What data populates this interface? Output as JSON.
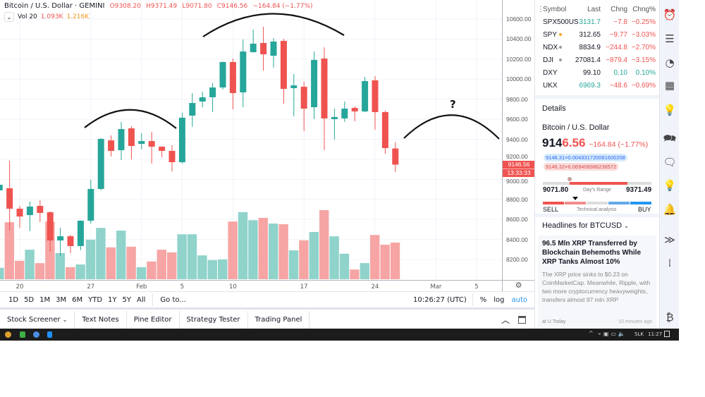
{
  "legend": {
    "title": "Bitcoin / U.S. Dollar · GEMINI",
    "open": "O9308.20",
    "high": "H9371.49",
    "low": "L9071.80",
    "close": "C9146.56",
    "change": "−164.84 (−1.77%)",
    "vol_label": "Vol 20",
    "vol_value": "1.093K",
    "vol_ma": "1.216K"
  },
  "colors": {
    "up": "#26a69a",
    "down": "#ef5350",
    "up_vol": "#8fd3cb",
    "down_vol": "#f6a5a4"
  },
  "chart_data": {
    "type": "candlestick",
    "dates": [
      "2020-01-18",
      "2020-01-19",
      "2020-01-20",
      "2020-01-21",
      "2020-01-22",
      "2020-01-23",
      "2020-01-24",
      "2020-01-25",
      "2020-01-26",
      "2020-01-27",
      "2020-01-28",
      "2020-01-29",
      "2020-01-30",
      "2020-01-31",
      "2020-02-01",
      "2020-02-02",
      "2020-02-03",
      "2020-02-04",
      "2020-02-05",
      "2020-02-06",
      "2020-02-07",
      "2020-02-08",
      "2020-02-09",
      "2020-02-10",
      "2020-02-11",
      "2020-02-12",
      "2020-02-13",
      "2020-02-14",
      "2020-02-15",
      "2020-02-16",
      "2020-02-17",
      "2020-02-18",
      "2020-02-19",
      "2020-02-20",
      "2020-02-21",
      "2020-02-22",
      "2020-02-23",
      "2020-02-24",
      "2020-02-25",
      "2020-02-26"
    ],
    "open": [
      8890,
      8911,
      8707,
      8643,
      8735,
      8672,
      8390,
      8432,
      8334,
      8587,
      8904,
      9389,
      9291,
      9509,
      9354,
      9382,
      9326,
      9284,
      9171,
      9636,
      9777,
      9819,
      9917,
      10171,
      9868,
      10269,
      10361,
      10234,
      10382,
      9910,
      9924,
      9720,
      10206,
      9601,
      9608,
      9713,
      9678,
      9988,
      9671,
      9308.2
    ],
    "high": [
      8995,
      9185,
      8735,
      8777,
      8791,
      8680,
      8517,
      8446,
      8590,
      8995,
      9410,
      9439,
      9572,
      9530,
      9460,
      9474,
      9330,
      9340,
      9664,
      9861,
      9875,
      9960,
      10175,
      10206,
      10396,
      10494,
      10523,
      10410,
      10403,
      10051,
      9974,
      10276,
      10318,
      9706,
      9777,
      9727,
      10023,
      10030,
      9685,
      9371.49
    ],
    "low": [
      8855,
      8489,
      8517,
      8482,
      8573,
      8277,
      8235,
      8263,
      8292,
      8559,
      8890,
      9228,
      9192,
      9199,
      9298,
      9157,
      9221,
      9080,
      9157,
      9523,
      9720,
      9671,
      9896,
      9699,
      9720,
      10265,
      10086,
      10114,
      9755,
      9629,
      9481,
      9601,
      9291,
      9397,
      9572,
      9579,
      9670,
      9495,
      9256,
      9071.8
    ],
    "close": [
      8946,
      8707,
      8629,
      8728,
      8665,
      8390,
      8432,
      8334,
      8587,
      8904,
      9404,
      9284,
      9502,
      9333,
      9382,
      9326,
      9284,
      9171,
      9615,
      9762,
      9819,
      9917,
      10171,
      9861,
      10276,
      10354,
      10248,
      10375,
      9903,
      9938,
      9706,
      10192,
      9608,
      9622,
      9706,
      9678,
      9981,
      9671,
      9312,
      9146.56
    ],
    "volume_k": [
      0.34,
      1.7,
      0.55,
      0.88,
      0.48,
      1.72,
      0.78,
      0.36,
      0.44,
      1.18,
      1.53,
      0.95,
      1.45,
      0.97,
      0.36,
      0.53,
      0.88,
      0.8,
      1.34,
      1.34,
      0.71,
      0.57,
      0.59,
      1.72,
      2.0,
      1.76,
      1.83,
      1.66,
      1.64,
      0.86,
      1.16,
      1.41,
      2.06,
      1.28,
      0.76,
      0.29,
      0.48,
      1.32,
      1.03,
      1.093
    ],
    "ylim": [
      8050,
      10790
    ],
    "y_ticks": [
      "10600.00",
      "10400.00",
      "10200.00",
      "10000.00",
      "9800.00",
      "9600.00",
      "9400.00",
      "9200.00",
      "9000.00",
      "8800.00",
      "8600.00",
      "8400.00",
      "8200.00"
    ],
    "x_ticks": [
      {
        "label": "20",
        "date": "2020-01-20"
      },
      {
        "label": "27",
        "date": "2020-01-27"
      },
      {
        "label": "Feb",
        "date": "2020-02-01"
      },
      {
        "label": "5",
        "date": "2020-02-05"
      },
      {
        "label": "10",
        "date": "2020-02-10"
      },
      {
        "label": "17",
        "date": "2020-02-17"
      },
      {
        "label": "24",
        "date": "2020-02-24"
      },
      {
        "label": "Mar",
        "date": "2020-03-01"
      },
      {
        "label": "5",
        "date": "2020-03-05"
      }
    ],
    "last_price_label": "9146.56",
    "countdown": "13:33:33",
    "annotation": "?",
    "grid": true
  },
  "range_bar": {
    "ranges": [
      "1D",
      "5D",
      "1M",
      "3M",
      "6M",
      "YTD",
      "1Y",
      "5Y",
      "All"
    ],
    "goto": "Go to...",
    "time": "10:26:27 (UTC)",
    "percent": "%",
    "log": "log",
    "auto": "auto"
  },
  "bottom_tabs": [
    "Stock Screener",
    "Text Notes",
    "Pine Editor",
    "Strategy Tester",
    "Trading Panel"
  ],
  "watchlist": {
    "headers": [
      "Symbol",
      "Last",
      "Chng",
      "Chng%"
    ],
    "rows": [
      {
        "symbol": "SPX500US",
        "last": "3131.7",
        "chng": "−7.8",
        "pct": "−0.25%",
        "last_color": "green",
        "dot": ""
      },
      {
        "symbol": "SPY",
        "last": "312.65",
        "chng": "−9.77",
        "pct": "−3.03%",
        "last_color": "",
        "dot": "#f5a623"
      },
      {
        "symbol": "NDX",
        "last": "8834.9",
        "chng": "−244.8",
        "pct": "−2.70%",
        "last_color": "",
        "dot": "#999"
      },
      {
        "symbol": "DJI",
        "last": "27081.4",
        "chng": "−879.4",
        "pct": "−3.15%",
        "last_color": "",
        "dot": "#999"
      },
      {
        "symbol": "DXY",
        "last": "99.10",
        "chng": "0.10",
        "pct": "0.10%",
        "last_color": "",
        "dot": ""
      },
      {
        "symbol": "UKX",
        "last": "6969.3",
        "chng": "−48.6",
        "pct": "−0.69%",
        "last_color": "green",
        "dot": ""
      }
    ]
  },
  "details": {
    "title": "Details",
    "name": "Bitcoin / U.S. Dollar",
    "price_main": "914",
    "price_tail": "6.56",
    "change": "−164.84 (−1.77%)",
    "bid": "9146.31×0.004331720061600208",
    "ask": "9146.32×6.069406986236572",
    "day_low": "9071.80",
    "day_high": "9371.49",
    "day_range_label": "Day's Range",
    "sell": "SELL",
    "buy": "BUY",
    "technical_label": "Technical analysis"
  },
  "headlines": {
    "title": "Headlines for BTCUSD",
    "news_title": "96.5 Mln XRP Transferred by Blockchain Behemoths While XRP Tanks Almost 10%",
    "news_body": "The XRP price sinks to $0.23 on CoinMarketCap. Meanwhile, Ripple, with two more cryptocurrency heavyweights, transfers almost 97 mln XRP",
    "source": "at U.Today",
    "time": "10 minutes ago"
  },
  "taskbar": {
    "lang": "SLK",
    "clock": "11:27"
  }
}
